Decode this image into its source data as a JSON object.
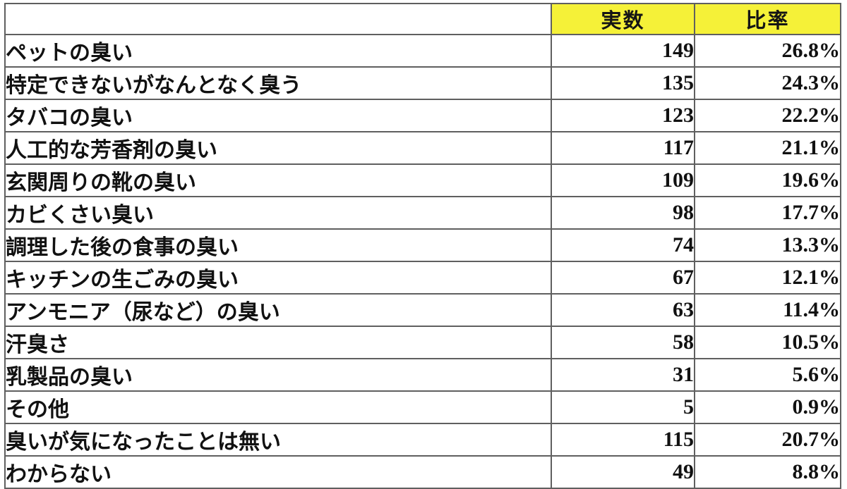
{
  "colors": {
    "header_bg": "#f5f138",
    "border": "#5f5f5f",
    "text": "#111111",
    "page_bg": "#ffffff"
  },
  "chart_data": {
    "type": "table",
    "title": "",
    "columns": [
      "",
      "実数",
      "比率"
    ],
    "column_meanings": [
      "odor-category",
      "count",
      "percentage"
    ],
    "rows": [
      [
        "ペットの臭い",
        149,
        "26.8%"
      ],
      [
        "特定できないがなんとなく臭う",
        135,
        "24.3%"
      ],
      [
        "タバコの臭い",
        123,
        "22.2%"
      ],
      [
        "人工的な芳香剤の臭い",
        117,
        "21.1%"
      ],
      [
        "玄関周りの靴の臭い",
        109,
        "19.6%"
      ],
      [
        "カビくさい臭い",
        98,
        "17.7%"
      ],
      [
        "調理した後の食事の臭い",
        74,
        "13.3%"
      ],
      [
        "キッチンの生ごみの臭い",
        67,
        "12.1%"
      ],
      [
        "アンモニア（尿など）の臭い",
        63,
        "11.4%"
      ],
      [
        "汗臭さ",
        58,
        "10.5%"
      ],
      [
        "乳製品の臭い",
        31,
        "5.6%"
      ],
      [
        "その他",
        5,
        "0.9%"
      ],
      [
        "臭いが気になったことは無い",
        115,
        "20.7%"
      ],
      [
        "わからない",
        49,
        "8.8%"
      ]
    ]
  }
}
